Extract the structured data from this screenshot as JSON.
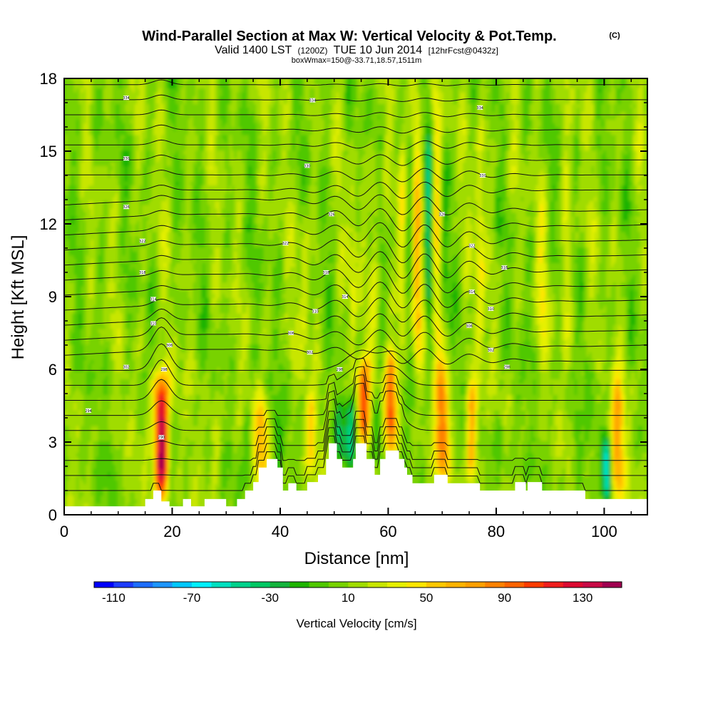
{
  "chart_data": {
    "type": "heatmap",
    "title": "Wind-Parallel Section at Max W: Vertical Velocity & Pot.Temp.",
    "title_mark": "(C)",
    "subtitle_prefix": "Valid 1400 LST",
    "subtitle_utc": "(1200Z)",
    "subtitle_date": "TUE 10 Jun 2014",
    "subtitle_fcst": "[12hrFcst@0432z]",
    "subtitle_box": "boxWmax=150@-33.71,18.57,1511m",
    "xlabel": "Distance [nm]",
    "ylabel": "Height [Kft MSL]",
    "xlim": [
      0,
      108
    ],
    "ylim": [
      0,
      18
    ],
    "x_ticks": [
      "0",
      "20",
      "40",
      "60",
      "80",
      "100"
    ],
    "y_ticks": [
      "0",
      "3",
      "6",
      "9",
      "12",
      "15",
      "18"
    ],
    "colorbar": {
      "label": "Vertical Velocity [cm/s]",
      "tick_labels": [
        "-110",
        "-70",
        "-30",
        "10",
        "50",
        "90",
        "130"
      ],
      "tick_values": [
        -110,
        -70,
        -30,
        10,
        50,
        90,
        130
      ],
      "min": -120,
      "max": 150,
      "colors": [
        "#0000ff",
        "#1e3cff",
        "#1e6eff",
        "#1e96ff",
        "#00c8ff",
        "#00f0ff",
        "#00e0c0",
        "#00d28c",
        "#00c864",
        "#14b43c",
        "#1eb400",
        "#50c800",
        "#78d200",
        "#a0dc00",
        "#c8e600",
        "#e6f000",
        "#ffe600",
        "#ffc800",
        "#ffb400",
        "#ffa000",
        "#ff8200",
        "#ff6400",
        "#ff3c00",
        "#f01e1e",
        "#dc0a32",
        "#c80a46",
        "#a00050"
      ]
    },
    "updrafts": [
      {
        "x": 18,
        "w": 1.6,
        "ybot": 0.6,
        "ytop": 5.8,
        "peak": 140
      },
      {
        "x": 36.5,
        "w": 1.3,
        "ybot": 1.0,
        "ytop": 5.2,
        "peak": 50
      },
      {
        "x": 45.8,
        "w": 1.0,
        "ybot": 1.8,
        "ytop": 5.0,
        "peak": 40
      },
      {
        "x": 55.5,
        "w": 1.1,
        "ybot": 2.8,
        "ytop": 6.5,
        "peak": 85
      },
      {
        "x": 60.5,
        "w": 1.1,
        "ybot": 2.6,
        "ytop": 6.8,
        "peak": 95
      },
      {
        "x": 70.0,
        "w": 1.2,
        "ybot": 1.5,
        "ytop": 6.2,
        "peak": 80
      },
      {
        "x": 75.5,
        "w": 1.0,
        "ybot": 1.4,
        "ytop": 5.6,
        "peak": 65
      },
      {
        "x": 102.5,
        "w": 1.2,
        "ybot": 0.6,
        "ytop": 5.6,
        "peak": 65
      },
      {
        "x": 65.5,
        "w": 0.8,
        "ybot": 6,
        "ytop": 17.5,
        "peak": 45
      },
      {
        "x": 69.0,
        "w": 0.8,
        "ybot": 6,
        "ytop": 17.5,
        "peak": 40
      },
      {
        "x": 62.5,
        "w": 0.8,
        "ybot": 6,
        "ytop": 16.0,
        "peak": 30
      },
      {
        "x": 57.5,
        "w": 0.8,
        "ybot": 6,
        "ytop": 15.5,
        "peak": 25
      },
      {
        "x": 77.0,
        "w": 0.9,
        "ybot": 6,
        "ytop": 17.0,
        "peak": 30
      },
      {
        "x": 53.5,
        "w": 0.7,
        "ybot": 6,
        "ytop": 14.0,
        "peak": 22
      },
      {
        "x": 44.5,
        "w": 0.8,
        "ybot": 6,
        "ytop": 13.0,
        "peak": 20
      },
      {
        "x": 88.5,
        "w": 0.9,
        "ybot": 6,
        "ytop": 14.0,
        "peak": 20
      },
      {
        "x": 93.0,
        "w": 0.9,
        "ybot": 7,
        "ytop": 15.0,
        "peak": 20
      },
      {
        "x": 28.0,
        "w": 1.0,
        "ybot": 1,
        "ytop": 5.0,
        "peak": 20
      }
    ],
    "downdrafts": [
      {
        "x": 16.5,
        "w": 0.8,
        "ybot": 0.6,
        "ytop": 5.0,
        "peak": -25
      },
      {
        "x": 19.6,
        "w": 0.8,
        "ybot": 0.6,
        "ytop": 5.0,
        "peak": -30
      },
      {
        "x": 100.5,
        "w": 0.8,
        "ybot": 0.6,
        "ytop": 3.2,
        "peak": -75
      },
      {
        "x": 53.0,
        "w": 1.0,
        "ybot": 2.0,
        "ytop": 5.0,
        "peak": -40
      },
      {
        "x": 58.0,
        "w": 1.0,
        "ybot": 2.0,
        "ytop": 5.0,
        "peak": -35
      },
      {
        "x": 51.0,
        "w": 0.9,
        "ybot": 2.0,
        "ytop": 4.6,
        "peak": -30
      },
      {
        "x": 67.5,
        "w": 0.6,
        "ybot": 7,
        "ytop": 16.5,
        "peak": -35
      },
      {
        "x": 64.0,
        "w": 0.6,
        "ybot": 8,
        "ytop": 16.0,
        "peak": -25
      },
      {
        "x": 70.5,
        "w": 0.6,
        "ybot": 8,
        "ytop": 16.0,
        "peak": -20
      },
      {
        "x": 34.0,
        "w": 0.8,
        "ybot": 1.2,
        "ytop": 4.5,
        "peak": -20
      },
      {
        "x": 39.5,
        "w": 1.0,
        "ybot": 1.5,
        "ytop": 4.5,
        "peak": -20
      },
      {
        "x": 95.0,
        "w": 0.8,
        "ybot": 1.0,
        "ytop": 4.5,
        "peak": -20
      },
      {
        "x": 8.5,
        "w": 0.8,
        "ybot": 1.0,
        "ytop": 3.5,
        "peak": -15
      },
      {
        "x": 80.5,
        "w": 0.8,
        "ybot": 1.0,
        "ytop": 4.0,
        "peak": -20
      }
    ],
    "terrain": [
      [
        0,
        0.35
      ],
      [
        15,
        0.35
      ],
      [
        15,
        0.65
      ],
      [
        16.5,
        0.65
      ],
      [
        16.5,
        1.0
      ],
      [
        18,
        1.0
      ],
      [
        18,
        0.55
      ],
      [
        19.5,
        0.55
      ],
      [
        19.5,
        0.35
      ],
      [
        22,
        0.35
      ],
      [
        22,
        0.65
      ],
      [
        23.5,
        0.65
      ],
      [
        23.5,
        0.35
      ],
      [
        26,
        0.35
      ],
      [
        26,
        0.65
      ],
      [
        30,
        0.65
      ],
      [
        30,
        0.35
      ],
      [
        32,
        0.35
      ],
      [
        32,
        0.65
      ],
      [
        33.5,
        0.65
      ],
      [
        33.5,
        1.0
      ],
      [
        35,
        1.0
      ],
      [
        35,
        1.35
      ],
      [
        36,
        1.35
      ],
      [
        36,
        1.95
      ],
      [
        37.5,
        1.95
      ],
      [
        37.5,
        2.3
      ],
      [
        39.5,
        2.3
      ],
      [
        39.5,
        1.95
      ],
      [
        40.5,
        1.95
      ],
      [
        40.5,
        1.0
      ],
      [
        41.5,
        1.0
      ],
      [
        41.5,
        1.3
      ],
      [
        43,
        1.3
      ],
      [
        43,
        1.0
      ],
      [
        45,
        1.0
      ],
      [
        45,
        1.35
      ],
      [
        47,
        1.35
      ],
      [
        47,
        1.65
      ],
      [
        48.5,
        1.65
      ],
      [
        48.5,
        2.3
      ],
      [
        49,
        2.3
      ],
      [
        49,
        2.95
      ],
      [
        50.5,
        2.95
      ],
      [
        50.5,
        2.3
      ],
      [
        51.5,
        2.3
      ],
      [
        51.5,
        1.95
      ],
      [
        53.5,
        1.95
      ],
      [
        53.5,
        2.3
      ],
      [
        54,
        2.3
      ],
      [
        54,
        2.95
      ],
      [
        56,
        2.95
      ],
      [
        56,
        2.3
      ],
      [
        57.5,
        2.3
      ],
      [
        57.5,
        1.65
      ],
      [
        58.5,
        1.65
      ],
      [
        58.5,
        2.3
      ],
      [
        59.5,
        2.3
      ],
      [
        59.5,
        2.65
      ],
      [
        62,
        2.65
      ],
      [
        62,
        2.3
      ],
      [
        63,
        2.3
      ],
      [
        63,
        1.95
      ],
      [
        63.5,
        1.95
      ],
      [
        63.5,
        1.65
      ],
      [
        64.5,
        1.65
      ],
      [
        64.5,
        1.3
      ],
      [
        68.5,
        1.3
      ],
      [
        68.5,
        1.65
      ],
      [
        71,
        1.65
      ],
      [
        71,
        1.3
      ],
      [
        77,
        1.3
      ],
      [
        77,
        1.0
      ],
      [
        83.5,
        1.0
      ],
      [
        83.5,
        1.35
      ],
      [
        85.5,
        1.35
      ],
      [
        85.5,
        1.0
      ],
      [
        85.8,
        1.0
      ],
      [
        85.8,
        1.35
      ],
      [
        88.5,
        1.35
      ],
      [
        88.5,
        1.0
      ],
      [
        96.5,
        1.0
      ],
      [
        96.5,
        0.65
      ],
      [
        108,
        0.65
      ],
      [
        108,
        0
      ]
    ],
    "theta_labels": [
      {
        "x": 11.5,
        "y": 17.2,
        "t": "334"
      },
      {
        "x": 46,
        "y": 17.1,
        "t": "334"
      },
      {
        "x": 77,
        "y": 16.8,
        "t": "334"
      },
      {
        "x": 11.5,
        "y": 14.7,
        "t": "330"
      },
      {
        "x": 45,
        "y": 14.4,
        "t": "330"
      },
      {
        "x": 77.5,
        "y": 14.0,
        "t": "330"
      },
      {
        "x": 11.5,
        "y": 12.7,
        "t": "326"
      },
      {
        "x": 49.5,
        "y": 12.4,
        "t": "326"
      },
      {
        "x": 70,
        "y": 12.4,
        "t": "326"
      },
      {
        "x": 14.5,
        "y": 11.3,
        "t": "322"
      },
      {
        "x": 41,
        "y": 11.2,
        "t": "322"
      },
      {
        "x": 75.5,
        "y": 11.1,
        "t": "322"
      },
      {
        "x": 14.5,
        "y": 10.0,
        "t": "318"
      },
      {
        "x": 48.5,
        "y": 10.0,
        "t": "318"
      },
      {
        "x": 81.5,
        "y": 10.2,
        "t": "318"
      },
      {
        "x": 16.5,
        "y": 8.9,
        "t": "314"
      },
      {
        "x": 52,
        "y": 9.0,
        "t": "314"
      },
      {
        "x": 75.5,
        "y": 9.2,
        "t": "314"
      },
      {
        "x": 16.5,
        "y": 7.9,
        "t": "310"
      },
      {
        "x": 46.5,
        "y": 8.4,
        "t": "310"
      },
      {
        "x": 79,
        "y": 8.5,
        "t": "310"
      },
      {
        "x": 19.5,
        "y": 7.0,
        "t": "306"
      },
      {
        "x": 42,
        "y": 7.5,
        "t": "306"
      },
      {
        "x": 75,
        "y": 7.8,
        "t": "306"
      },
      {
        "x": 11.5,
        "y": 6.1,
        "t": "302"
      },
      {
        "x": 45.5,
        "y": 6.7,
        "t": "302"
      },
      {
        "x": 79,
        "y": 6.8,
        "t": "302"
      },
      {
        "x": 18.5,
        "y": 6.0,
        "t": "298"
      },
      {
        "x": 51,
        "y": 6.0,
        "t": "298"
      },
      {
        "x": 82,
        "y": 6.1,
        "t": "298"
      },
      {
        "x": 4.5,
        "y": 4.3,
        "t": "294"
      },
      {
        "x": 18,
        "y": 3.2,
        "t": "290"
      }
    ]
  }
}
